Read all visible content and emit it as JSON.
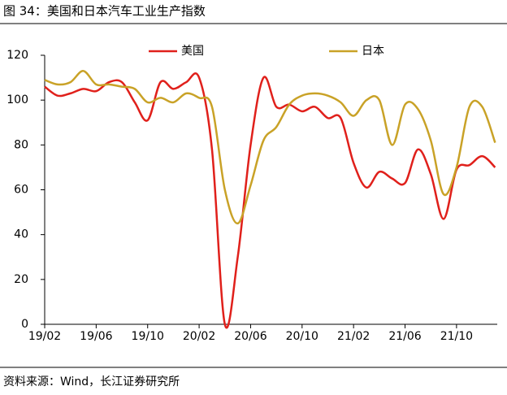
{
  "chart_data": {
    "type": "line",
    "title": "图 34：美国和日本汽车工业生产指数",
    "source": "资料来源：Wind，长江证券研究所",
    "categories": [
      "19/02",
      null,
      null,
      null,
      "19/06",
      null,
      null,
      null,
      "19/10",
      null,
      null,
      null,
      "20/02",
      null,
      null,
      null,
      "20/06",
      null,
      null,
      null,
      "20/10",
      null,
      null,
      null,
      "21/02",
      null,
      null,
      null,
      "21/06",
      null,
      null,
      null,
      "21/10",
      null,
      null,
      null
    ],
    "series": [
      {
        "name": "美国",
        "color": "#e0201b",
        "values": [
          106,
          102,
          103,
          105,
          104,
          108,
          108,
          99,
          91,
          108,
          105,
          108,
          110,
          78,
          0,
          30,
          80,
          110,
          97,
          98,
          95,
          97,
          92,
          92,
          72,
          61,
          68,
          65,
          63,
          78,
          67,
          47,
          69,
          71,
          75,
          70
        ]
      },
      {
        "name": "日本",
        "color": "#c9a227",
        "values": [
          109,
          107,
          108,
          113,
          107,
          107,
          106,
          105,
          99,
          101,
          99,
          103,
          101,
          97,
          60,
          45,
          62,
          82,
          88,
          98,
          102,
          103,
          102,
          99,
          93,
          100,
          100,
          80,
          98,
          96,
          82,
          58,
          70,
          97,
          97,
          81
        ]
      }
    ],
    "ylim": [
      0,
      120
    ],
    "yticks": [
      0,
      20,
      40,
      60,
      80,
      100,
      120
    ]
  }
}
